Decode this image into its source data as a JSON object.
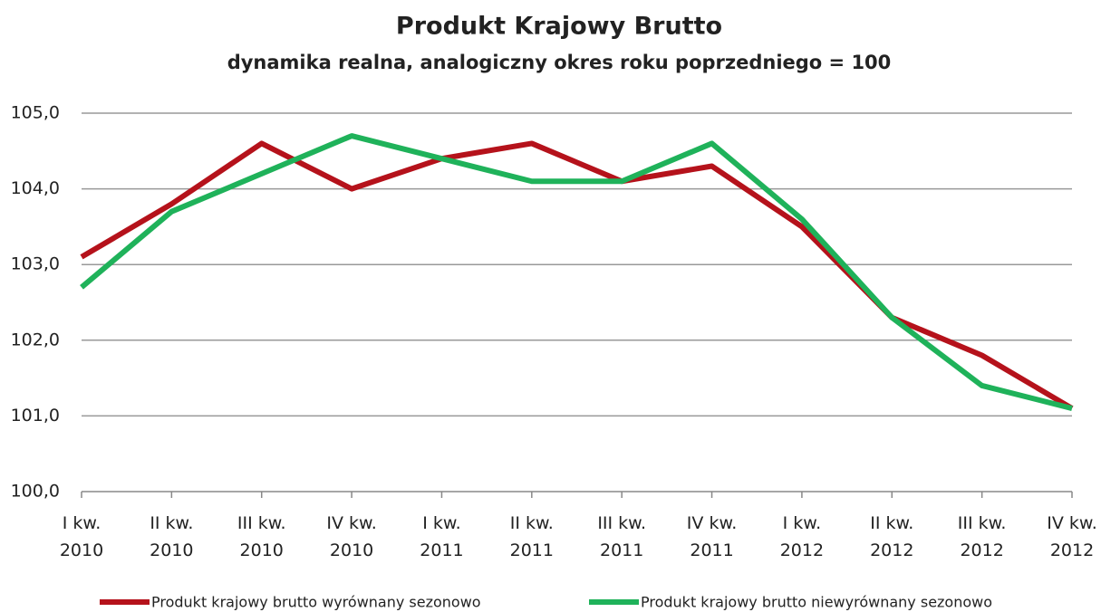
{
  "chart_data": {
    "type": "line",
    "title": "Produkt Krajowy Brutto",
    "subtitle": "dynamika realna, analogiczny okres roku poprzedniego = 100",
    "categories": [
      "I kw. 2010",
      "II kw. 2010",
      "III kw. 2010",
      "IV kw. 2010",
      "I kw. 2011",
      "II kw. 2011",
      "III kw. 2011",
      "IV kw. 2011",
      "I kw. 2012",
      "II kw. 2012",
      "III kw. 2012",
      "IV kw. 2012"
    ],
    "series": [
      {
        "name": "Produkt krajowy brutto wyrównany sezonowo",
        "color": "#b5121b",
        "values": [
          103.1,
          103.8,
          104.6,
          104.0,
          104.4,
          104.6,
          104.1,
          104.3,
          103.5,
          102.3,
          101.8,
          101.1
        ]
      },
      {
        "name": "Produkt krajowy brutto niewyrównany sezonowo",
        "color": "#1fb25a",
        "values": [
          102.7,
          103.7,
          104.2,
          104.7,
          104.4,
          104.1,
          104.1,
          104.6,
          103.6,
          102.3,
          101.4,
          101.1
        ]
      }
    ],
    "ylim": [
      100,
      105
    ],
    "yticks": [
      {
        "value": 100,
        "label": "100,0"
      },
      {
        "value": 101,
        "label": "101,0"
      },
      {
        "value": 102,
        "label": "102,0"
      },
      {
        "value": 103,
        "label": "103,0"
      },
      {
        "value": 104,
        "label": "104,0"
      },
      {
        "value": 105,
        "label": "105,0"
      }
    ],
    "grid": true,
    "legend": "bottom"
  }
}
